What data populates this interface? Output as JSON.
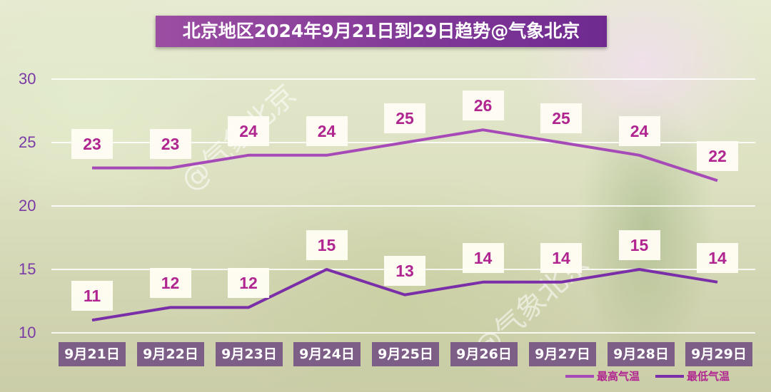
{
  "title": "北京地区2024年9月21日到29日趋势@气象北京",
  "watermark": "@气象北京",
  "y_ticks": [
    "30",
    "25",
    "20",
    "15",
    "10"
  ],
  "x_labels": [
    "9月21日",
    "9月22日",
    "9月23日",
    "9月24日",
    "9月25日",
    "9月26日",
    "9月27日",
    "9月28日",
    "9月29日"
  ],
  "legend": [
    "最高气温",
    "最低气温"
  ],
  "colors": {
    "high": "#a64ab8",
    "low": "#7a2ea8",
    "label_text": "#b02590",
    "title_bg": "#8a3e9c"
  },
  "chart_data": {
    "type": "line",
    "title": "北京地区2024年9月21日到29日趋势@气象北京",
    "x": [
      "9月21日",
      "9月22日",
      "9月23日",
      "9月24日",
      "9月25日",
      "9月26日",
      "9月27日",
      "9月28日",
      "9月29日"
    ],
    "ylim": [
      10,
      30
    ],
    "y_ticks": [
      10,
      15,
      20,
      25,
      30
    ],
    "grid": true,
    "legend_position": "bottom-right",
    "series": [
      {
        "name": "最高气温",
        "values": [
          23,
          23,
          24,
          24,
          25,
          26,
          25,
          24,
          22
        ],
        "color": "#a64ab8"
      },
      {
        "name": "最低气温",
        "values": [
          11,
          12,
          12,
          15,
          13,
          14,
          14,
          15,
          14
        ],
        "color": "#7a2ea8"
      }
    ],
    "data_labels": {
      "最高气温": [
        "23",
        "23",
        "24",
        "24",
        "25",
        "26",
        "25",
        "24",
        "22"
      ],
      "最低气温": [
        "11",
        "12",
        "12",
        "15",
        "13",
        "14",
        "14",
        "15",
        "14"
      ]
    }
  }
}
